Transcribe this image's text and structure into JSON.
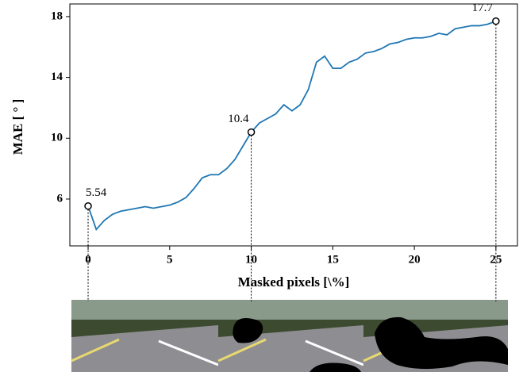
{
  "chart_data": {
    "type": "line",
    "xlabel": "Masked pixels [\\%]",
    "ylabel": "MAE [ ° ]",
    "x": [
      0,
      0.5,
      1,
      1.5,
      2,
      2.5,
      3,
      3.5,
      4,
      4.5,
      5,
      5.5,
      6,
      6.5,
      7,
      7.5,
      8,
      8.5,
      9,
      9.5,
      10,
      10.5,
      11,
      11.5,
      12,
      12.5,
      13,
      13.5,
      14,
      14.5,
      15,
      15.5,
      16,
      16.5,
      17,
      17.5,
      18,
      18.5,
      19,
      19.5,
      20,
      20.5,
      21,
      21.5,
      22,
      22.5,
      23,
      23.5,
      24,
      24.5,
      25
    ],
    "values": [
      5.54,
      4.0,
      4.6,
      5.0,
      5.2,
      5.3,
      5.4,
      5.5,
      5.4,
      5.5,
      5.6,
      5.8,
      6.1,
      6.7,
      7.4,
      7.6,
      7.6,
      8.0,
      8.6,
      9.5,
      10.4,
      11.0,
      11.3,
      11.6,
      12.2,
      11.8,
      12.2,
      13.2,
      15.0,
      15.4,
      14.6,
      14.6,
      15.0,
      15.2,
      15.6,
      15.7,
      15.9,
      16.2,
      16.3,
      16.5,
      16.6,
      16.6,
      16.7,
      16.9,
      16.8,
      17.2,
      17.3,
      17.4,
      17.4,
      17.5,
      17.7
    ],
    "color": "#1f77b4",
    "markers": {
      "x": [
        0,
        10,
        25
      ],
      "values": [
        5.54,
        10.4,
        17.7
      ]
    },
    "xlim": [
      -1.12,
      26.32
    ],
    "ylim": [
      2.92,
      18.83
    ],
    "xticks": [
      0,
      5,
      10,
      15,
      20,
      25
    ],
    "yticks": [
      6,
      10,
      14,
      18
    ]
  }
}
